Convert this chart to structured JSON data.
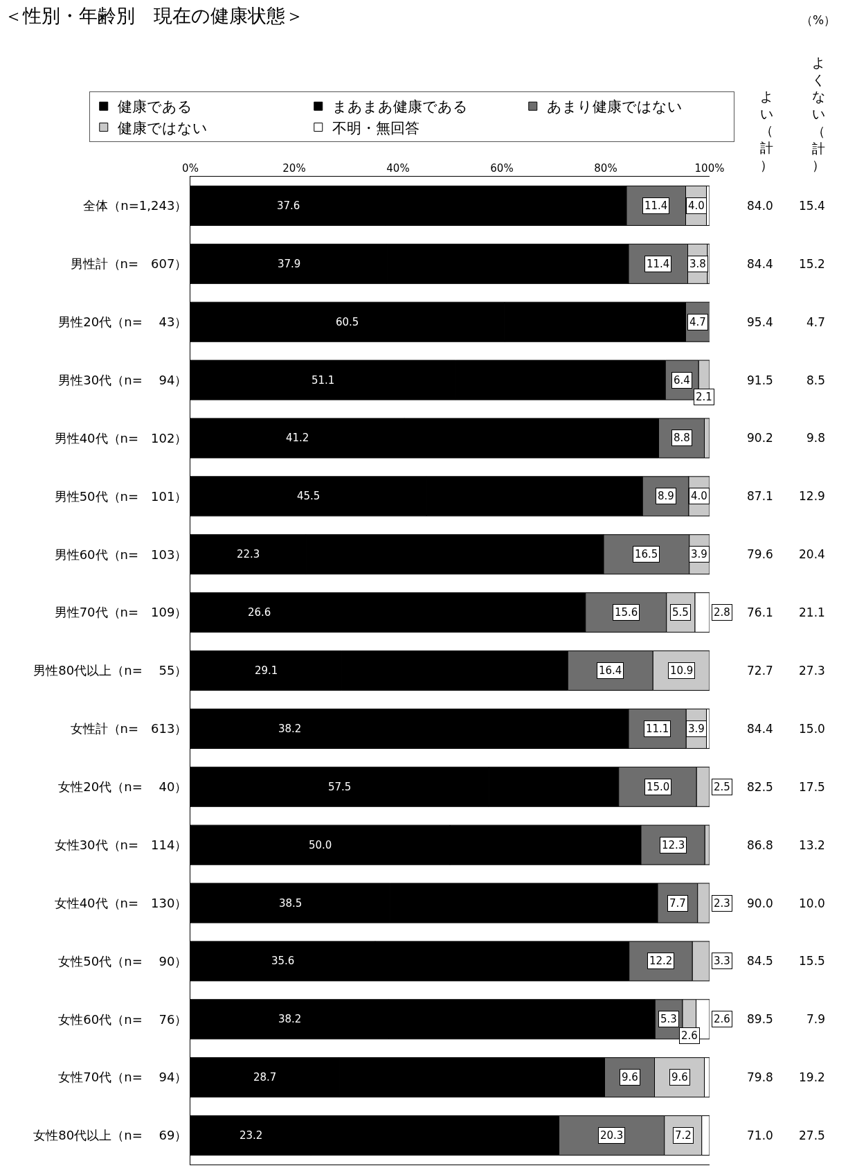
{
  "chart_data": {
    "type": "bar",
    "orientation": "horizontal",
    "stacked": true,
    "title": "＜性別・年齢別　現在の健康状態＞",
    "legend": "top",
    "categories": [
      "全体（n=1,243）",
      "男性計（n=　607）",
      "男性20代（n=　 43）",
      "男性30代（n=　 94）",
      "男性40代（n=　102）",
      "男性50代（n=　101）",
      "男性60代（n=　103）",
      "男性70代（n=　109）",
      "男性80代以上（n=　 55）",
      "女性計（n=　613）",
      "女性20代（n=　 40）",
      "女性30代（n=　114）",
      "女性40代（n=　130）",
      "女性50代（n=　 90）",
      "女性60代（n=　 76）",
      "女性70代（n=　 94）",
      "女性80代以上（n=　 69）"
    ],
    "xlim": [
      0,
      100
    ],
    "xticks": [
      {
        "value": 0,
        "label": "0%"
      },
      {
        "value": 20,
        "label": "20%"
      },
      {
        "value": 40,
        "label": "40%"
      },
      {
        "value": 60,
        "label": "60%"
      },
      {
        "value": 80,
        "label": "80%"
      },
      {
        "value": 100,
        "label": "100%"
      }
    ],
    "series": [
      {
        "name": "健康である",
        "color": "#000000",
        "values": [
          37.6,
          37.9,
          60.5,
          51.1,
          41.2,
          45.5,
          22.3,
          26.6,
          29.1,
          38.2,
          57.5,
          50.0,
          38.5,
          35.6,
          38.2,
          28.7,
          23.2
        ],
        "value_labels": [
          "37.6",
          "37.9",
          "60.5",
          "51.1",
          "41.2",
          "45.5",
          "22.3",
          "26.6",
          "29.1",
          "38.2",
          "57.5",
          "50.0",
          "38.5",
          "35.6",
          "38.2",
          "28.7",
          "23.2"
        ]
      },
      {
        "name": "まあまあ健康である",
        "color": "#000000",
        "values": [
          46.4,
          46.5,
          34.9,
          40.4,
          49.0,
          41.6,
          57.3,
          49.5,
          43.6,
          46.2,
          25.0,
          36.8,
          51.5,
          48.9,
          51.3,
          51.1,
          47.8
        ]
      },
      {
        "name": "あまり健康ではない",
        "color": "#6e6e6e",
        "values": [
          11.4,
          11.4,
          4.7,
          6.4,
          8.8,
          8.9,
          16.5,
          15.6,
          16.4,
          11.1,
          15.0,
          12.3,
          7.7,
          12.2,
          5.3,
          9.6,
          20.3
        ],
        "value_labels": [
          "11.4",
          "11.4",
          "4.7",
          "6.4",
          "8.8",
          "8.9",
          "16.5",
          "15.6",
          "16.4",
          "11.1",
          "15.0",
          "12.3",
          "7.7",
          "12.2",
          "5.3",
          "9.6",
          "20.3"
        ]
      },
      {
        "name": "健康ではない",
        "color": "#c8c8c8",
        "values": [
          4.0,
          3.8,
          0,
          2.1,
          1.0,
          4.0,
          3.9,
          5.5,
          10.9,
          3.9,
          2.5,
          0.9,
          2.3,
          3.3,
          2.6,
          9.6,
          7.2
        ],
        "value_labels": [
          "4.0",
          "3.8",
          null,
          "2.1",
          null,
          "4.0",
          "3.9",
          "5.5",
          "10.9",
          "3.9",
          "2.5",
          null,
          "2.3",
          "3.3",
          "2.6",
          "9.6",
          "7.2"
        ]
      },
      {
        "name": "不明・無回答",
        "color": "#ffffff",
        "values": [
          0.6,
          0.4,
          0,
          0,
          0,
          0,
          0,
          2.8,
          0,
          0.6,
          0,
          0,
          0,
          0,
          2.6,
          1.0,
          1.5
        ],
        "value_labels": [
          null,
          null,
          null,
          null,
          null,
          null,
          null,
          "2.8",
          null,
          null,
          null,
          null,
          null,
          null,
          "2.6",
          null,
          null
        ]
      }
    ],
    "annotations": [
      "（%）",
      "よい（計）",
      "よくない（計）",
      "84.0",
      "84.4",
      "95.4",
      "91.5",
      "90.2",
      "87.1",
      "79.6",
      "76.1",
      "72.7",
      "84.4",
      "82.5",
      "86.8",
      "90.0",
      "84.5",
      "89.5",
      "79.8",
      "71.0",
      "15.4",
      "15.2",
      "4.7",
      "8.5",
      "9.8",
      "12.9",
      "20.4",
      "21.1",
      "27.3",
      "15.0",
      "17.5",
      "13.2",
      "10.0",
      "15.5",
      "7.9",
      "19.2",
      "27.5"
    ]
  }
}
